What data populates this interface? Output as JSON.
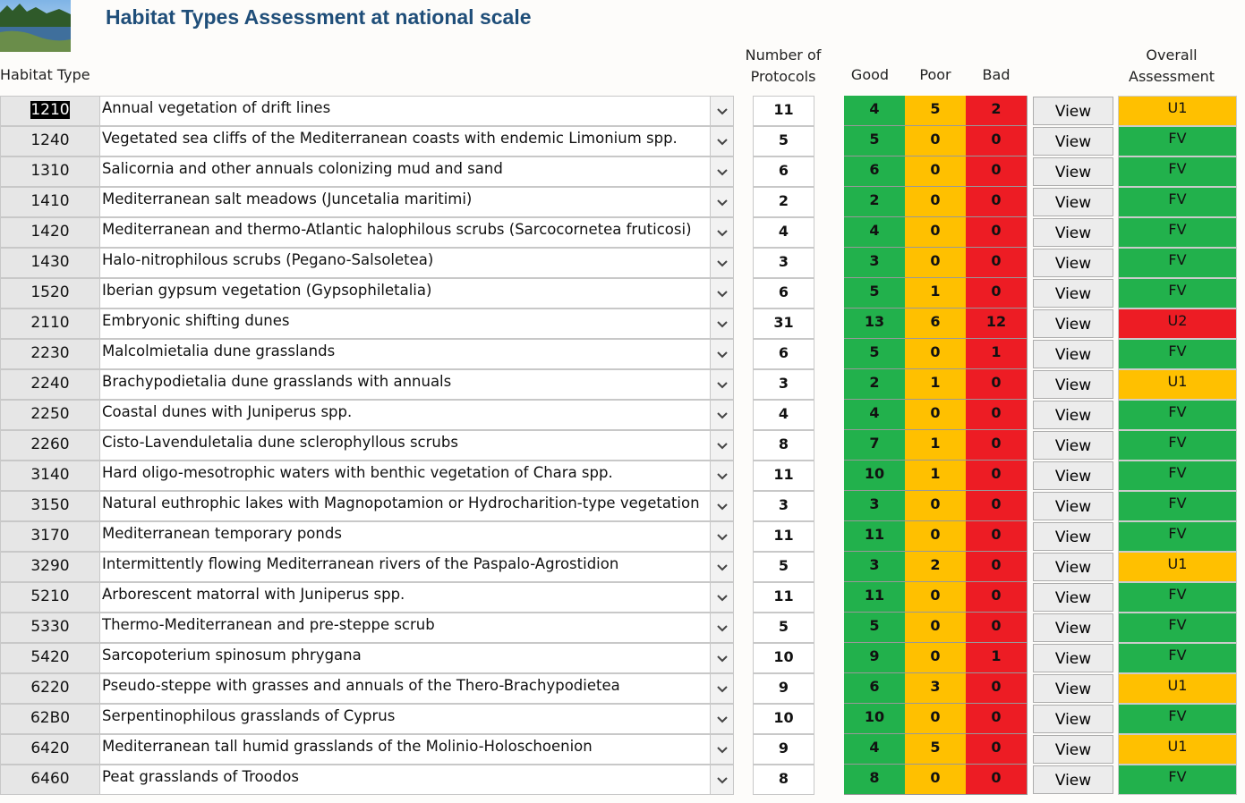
{
  "header": {
    "title": "Habitat Types Assessment at national scale"
  },
  "columns": {
    "habitat_type": "Habitat Type",
    "protocols": [
      "Number of",
      "Protocols"
    ],
    "good": "Good",
    "poor": "Poor",
    "bad": "Bad",
    "overall": [
      "Overall",
      "Assessment"
    ]
  },
  "view_button": "View",
  "colors": {
    "good": "#22b14c",
    "poor": "#ffc000",
    "bad": "#ed1c24",
    "assessment": {
      "FV": "#22b14c",
      "U1": "#ffc000",
      "U2": "#ed1c24"
    }
  },
  "table": {
    "rows": [
      {
        "code": "1210",
        "name": "Annual vegetation of drift lines",
        "protocols": 11,
        "good": 4,
        "poor": 5,
        "bad": 2,
        "overall": "U1"
      },
      {
        "code": "1240",
        "name": "Vegetated sea cliffs of the Mediterranean coasts with endemic Limonium spp.",
        "protocols": 5,
        "good": 5,
        "poor": 0,
        "bad": 0,
        "overall": "FV"
      },
      {
        "code": "1310",
        "name": "Salicornia and other annuals colonizing mud and sand",
        "protocols": 6,
        "good": 6,
        "poor": 0,
        "bad": 0,
        "overall": "FV"
      },
      {
        "code": "1410",
        "name": "Mediterranean salt meadows (Juncetalia maritimi)",
        "protocols": 2,
        "good": 2,
        "poor": 0,
        "bad": 0,
        "overall": "FV"
      },
      {
        "code": "1420",
        "name": "Mediterranean and thermo-Atlantic halophilous scrubs (Sarcocornetea fruticosi)",
        "protocols": 4,
        "good": 4,
        "poor": 0,
        "bad": 0,
        "overall": "FV"
      },
      {
        "code": "1430",
        "name": "Halo-nitrophilous scrubs (Pegano-Salsoletea)",
        "protocols": 3,
        "good": 3,
        "poor": 0,
        "bad": 0,
        "overall": "FV"
      },
      {
        "code": "1520",
        "name": "Iberian gypsum vegetation (Gypsophiletalia)",
        "protocols": 6,
        "good": 5,
        "poor": 1,
        "bad": 0,
        "overall": "FV"
      },
      {
        "code": "2110",
        "name": "Embryonic shifting dunes",
        "protocols": 31,
        "good": 13,
        "poor": 6,
        "bad": 12,
        "overall": "U2"
      },
      {
        "code": "2230",
        "name": "Malcolmietalia dune grasslands",
        "protocols": 6,
        "good": 5,
        "poor": 0,
        "bad": 1,
        "overall": "FV"
      },
      {
        "code": "2240",
        "name": "Brachypodietalia dune grasslands with annuals",
        "protocols": 3,
        "good": 2,
        "poor": 1,
        "bad": 0,
        "overall": "U1"
      },
      {
        "code": "2250",
        "name": "Coastal dunes with Juniperus spp.",
        "protocols": 4,
        "good": 4,
        "poor": 0,
        "bad": 0,
        "overall": "FV"
      },
      {
        "code": "2260",
        "name": "Cisto-Lavenduletalia dune sclerophyllous scrubs",
        "protocols": 8,
        "good": 7,
        "poor": 1,
        "bad": 0,
        "overall": "FV"
      },
      {
        "code": "3140",
        "name": "Hard oligo-mesotrophic waters with benthic vegetation of Chara spp.",
        "protocols": 11,
        "good": 10,
        "poor": 1,
        "bad": 0,
        "overall": "FV"
      },
      {
        "code": "3150",
        "name": "Natural euthrophic lakes with Magnopotamion or Hydrocharition-type vegetation",
        "protocols": 3,
        "good": 3,
        "poor": 0,
        "bad": 0,
        "overall": "FV"
      },
      {
        "code": "3170",
        "name": "Mediterranean temporary ponds",
        "protocols": 11,
        "good": 11,
        "poor": 0,
        "bad": 0,
        "overall": "FV"
      },
      {
        "code": "3290",
        "name": "Intermittently flowing Mediterranean rivers of the Paspalo-Agrostidion",
        "protocols": 5,
        "good": 3,
        "poor": 2,
        "bad": 0,
        "overall": "U1"
      },
      {
        "code": "5210",
        "name": "Arborescent matorral with Juniperus spp.",
        "protocols": 11,
        "good": 11,
        "poor": 0,
        "bad": 0,
        "overall": "FV"
      },
      {
        "code": "5330",
        "name": "Thermo-Mediterranean and pre-steppe scrub",
        "protocols": 5,
        "good": 5,
        "poor": 0,
        "bad": 0,
        "overall": "FV"
      },
      {
        "code": "5420",
        "name": "Sarcopoterium spinosum phrygana",
        "protocols": 10,
        "good": 9,
        "poor": 0,
        "bad": 1,
        "overall": "FV"
      },
      {
        "code": "6220",
        "name": "Pseudo-steppe with grasses and annuals of the Thero-Brachypodietea",
        "protocols": 9,
        "good": 6,
        "poor": 3,
        "bad": 0,
        "overall": "U1"
      },
      {
        "code": "62B0",
        "name": "Serpentinophilous grasslands of Cyprus",
        "protocols": 10,
        "good": 10,
        "poor": 0,
        "bad": 0,
        "overall": "FV"
      },
      {
        "code": "6420",
        "name": "Mediterranean tall humid grasslands of the Molinio-Holoschoenion",
        "protocols": 9,
        "good": 4,
        "poor": 5,
        "bad": 0,
        "overall": "U1"
      },
      {
        "code": "6460",
        "name": "Peat grasslands of Troodos",
        "protocols": 8,
        "good": 8,
        "poor": 0,
        "bad": 0,
        "overall": "FV"
      }
    ]
  }
}
